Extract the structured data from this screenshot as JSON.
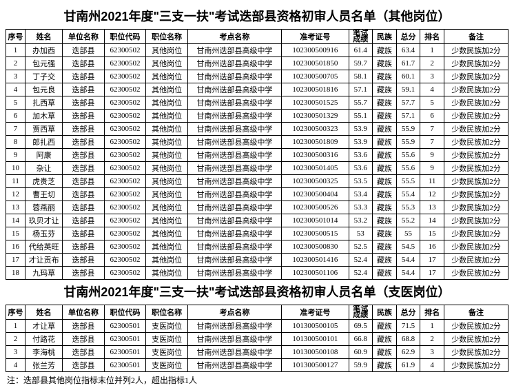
{
  "title1": "甘南州2021年度\"三支一扶\"考试迭部县资格初审人员名单（其他岗位）",
  "title2": "甘南州2021年度\"三支一扶\"考试迭部县资格初审人员名单（支医岗位）",
  "headers": [
    "序号",
    "姓名",
    "单位名称",
    "职位代码",
    "职位名称",
    "考点名称",
    "准考证号",
    "笔试成绩",
    "民族",
    "总分",
    "排名",
    "备注"
  ],
  "note": "注：迭部县其他岗位指标末位并列2人，超出指标1人",
  "t1": [
    [
      "1",
      "办加西",
      "迭部县",
      "62300502",
      "其他岗位",
      "甘南州迭部县高级中学",
      "102300500916",
      "61.4",
      "藏族",
      "63.4",
      "1",
      "少数民族加2分"
    ],
    [
      "2",
      "包元强",
      "迭部县",
      "62300502",
      "其他岗位",
      "甘南州迭部县高级中学",
      "102300501850",
      "59.7",
      "藏族",
      "61.7",
      "2",
      "少数民族加2分"
    ],
    [
      "3",
      "丁子交",
      "迭部县",
      "62300502",
      "其他岗位",
      "甘南州迭部县高级中学",
      "102300500705",
      "58.1",
      "藏族",
      "60.1",
      "3",
      "少数民族加2分"
    ],
    [
      "4",
      "包元良",
      "迭部县",
      "62300502",
      "其他岗位",
      "甘南州迭部县高级中学",
      "102300501816",
      "57.1",
      "藏族",
      "59.1",
      "4",
      "少数民族加2分"
    ],
    [
      "5",
      "扎西草",
      "迭部县",
      "62300502",
      "其他岗位",
      "甘南州迭部县高级中学",
      "102300501525",
      "55.7",
      "藏族",
      "57.7",
      "5",
      "少数民族加2分"
    ],
    [
      "6",
      "加木草",
      "迭部县",
      "62300502",
      "其他岗位",
      "甘南州迭部县高级中学",
      "102300501329",
      "55.1",
      "藏族",
      "57.1",
      "6",
      "少数民族加2分"
    ],
    [
      "7",
      "贾西草",
      "迭部县",
      "62300502",
      "其他岗位",
      "甘南州迭部县高级中学",
      "102300500323",
      "53.9",
      "藏族",
      "55.9",
      "7",
      "少数民族加2分"
    ],
    [
      "8",
      "郎扎西",
      "迭部县",
      "62300502",
      "其他岗位",
      "甘南州迭部县高级中学",
      "102300501809",
      "53.9",
      "藏族",
      "55.9",
      "7",
      "少数民族加2分"
    ],
    [
      "9",
      "阿康",
      "迭部县",
      "62300502",
      "其他岗位",
      "甘南州迭部县高级中学",
      "102300500316",
      "53.6",
      "藏族",
      "55.6",
      "9",
      "少数民族加2分"
    ],
    [
      "10",
      "杂让",
      "迭部县",
      "62300502",
      "其他岗位",
      "甘南州迭部县高级中学",
      "102300501405",
      "53.6",
      "藏族",
      "55.6",
      "9",
      "少数民族加2分"
    ],
    [
      "11",
      "虎贵芝",
      "迭部县",
      "62300502",
      "其他岗位",
      "甘南州迭部县高级中学",
      "102300500325",
      "53.5",
      "藏族",
      "55.5",
      "11",
      "少数民族加2分"
    ],
    [
      "12",
      "曹王切",
      "迭部县",
      "62300502",
      "其他岗位",
      "甘南州迭部县高级中学",
      "102300500404",
      "53.4",
      "藏族",
      "55.4",
      "12",
      "少数民族加2分"
    ],
    [
      "13",
      "蓉燕丽",
      "迭部县",
      "62300502",
      "其他岗位",
      "甘南州迭部县高级中学",
      "102300500526",
      "53.3",
      "藏族",
      "55.3",
      "13",
      "少数民族加2分"
    ],
    [
      "14",
      "玖贝才让",
      "迭部县",
      "62300502",
      "其他岗位",
      "甘南州迭部县高级中学",
      "102300501014",
      "53.2",
      "藏族",
      "55.2",
      "14",
      "少数民族加2分"
    ],
    [
      "15",
      "杨玉芬",
      "迭部县",
      "62300502",
      "其他岗位",
      "甘南州迭部县高级中学",
      "102300500515",
      "53",
      "藏族",
      "55",
      "15",
      "少数民族加2分"
    ],
    [
      "16",
      "代给英旺",
      "迭部县",
      "62300502",
      "其他岗位",
      "甘南州迭部县高级中学",
      "102300500830",
      "52.5",
      "藏族",
      "54.5",
      "16",
      "少数民族加2分"
    ],
    [
      "17",
      "才让贡布",
      "迭部县",
      "62300502",
      "其他岗位",
      "甘南州迭部县高级中学",
      "102300501416",
      "52.4",
      "藏族",
      "54.4",
      "17",
      "少数民族加2分"
    ],
    [
      "18",
      "九玛草",
      "迭部县",
      "62300502",
      "其他岗位",
      "甘南州迭部县高级中学",
      "102300501106",
      "52.4",
      "藏族",
      "54.4",
      "17",
      "少数民族加2分"
    ]
  ],
  "t2": [
    [
      "1",
      "才让草",
      "迭部县",
      "62300501",
      "支医岗位",
      "甘南州迭部县高级中学",
      "101300500105",
      "69.5",
      "藏族",
      "71.5",
      "1",
      "少数民族加2分"
    ],
    [
      "2",
      "付路花",
      "迭部县",
      "62300501",
      "支医岗位",
      "甘南州迭部县高级中学",
      "101300500101",
      "66.8",
      "藏族",
      "68.8",
      "2",
      "少数民族加2分"
    ],
    [
      "3",
      "李海桃",
      "迭部县",
      "62300501",
      "支医岗位",
      "甘南州迭部县高级中学",
      "101300500108",
      "60.9",
      "藏族",
      "62.9",
      "3",
      "少数民族加2分"
    ],
    [
      "4",
      "张兰芳",
      "迭部县",
      "62300501",
      "支医岗位",
      "甘南州迭部县高级中学",
      "101300500127",
      "59.9",
      "藏族",
      "61.9",
      "4",
      "少数民族加2分"
    ]
  ]
}
